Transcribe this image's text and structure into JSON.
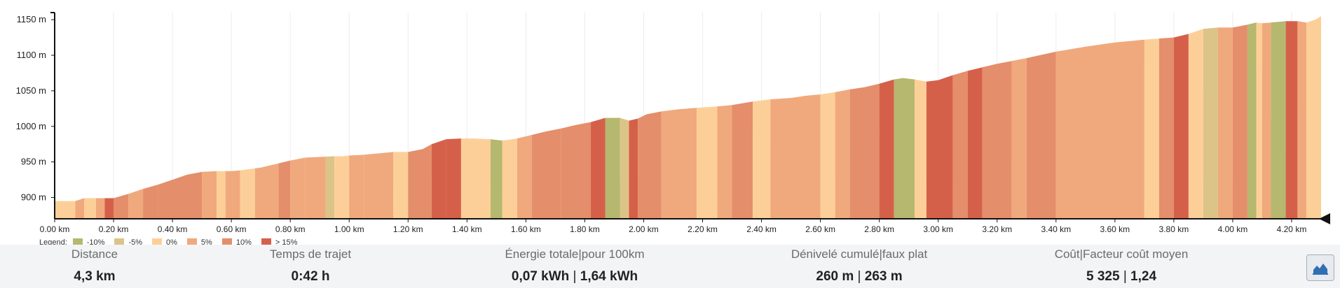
{
  "chart_data": {
    "type": "area",
    "x_unit": "km",
    "y_unit": "m",
    "xlim": [
      0,
      4.3
    ],
    "ylim": [
      870,
      1160
    ],
    "x_ticks": [
      "0.00 km",
      "0.20 km",
      "0.40 km",
      "0.60 km",
      "0.80 km",
      "1.00 km",
      "1.20 km",
      "1.40 km",
      "1.60 km",
      "1.80 km",
      "2.00 km",
      "2.20 km",
      "2.40 km",
      "2.60 km",
      "2.80 km",
      "3.00 km",
      "3.20 km",
      "3.40 km",
      "3.60 km",
      "3.80 km",
      "4.00 km",
      "4.20 km"
    ],
    "x_tick_values": [
      0,
      0.2,
      0.4,
      0.6,
      0.8,
      1.0,
      1.2,
      1.4,
      1.6,
      1.8,
      2.0,
      2.2,
      2.4,
      2.6,
      2.8,
      3.0,
      3.2,
      3.4,
      3.6,
      3.8,
      4.0,
      4.2
    ],
    "y_ticks": [
      "900 m",
      "950 m",
      "1000 m",
      "1050 m",
      "1100 m",
      "1150 m"
    ],
    "y_tick_values": [
      900,
      950,
      1000,
      1050,
      1100,
      1150
    ],
    "grid": "vertical",
    "legend": {
      "title": "Legend:",
      "items": [
        {
          "label": "-10%",
          "color": "#b5b86e"
        },
        {
          "label": "-5%",
          "color": "#dcc488"
        },
        {
          "label": "0%",
          "color": "#fdcf98"
        },
        {
          "label": "5%",
          "color": "#f0a97c"
        },
        {
          "label": "10%",
          "color": "#e48e6b"
        },
        {
          "label": "> 15%",
          "color": "#d5604a"
        }
      ]
    },
    "profile": {
      "name": "elevation",
      "x": [
        0.0,
        0.07,
        0.1,
        0.14,
        0.2,
        0.25,
        0.3,
        0.35,
        0.4,
        0.45,
        0.5,
        0.55,
        0.6,
        0.63,
        0.7,
        0.76,
        0.8,
        0.85,
        0.9,
        0.95,
        0.98,
        1.0,
        1.05,
        1.1,
        1.15,
        1.2,
        1.25,
        1.28,
        1.33,
        1.38,
        1.42,
        1.48,
        1.52,
        1.57,
        1.62,
        1.67,
        1.72,
        1.77,
        1.82,
        1.87,
        1.92,
        1.95,
        1.98,
        2.01,
        2.06,
        2.12,
        2.18,
        2.25,
        2.3,
        2.37,
        2.43,
        2.5,
        2.55,
        2.6,
        2.65,
        2.7,
        2.75,
        2.8,
        2.85,
        2.88,
        2.92,
        2.96,
        3.0,
        3.05,
        3.1,
        3.15,
        3.2,
        3.25,
        3.3,
        3.4,
        3.5,
        3.6,
        3.7,
        3.8,
        3.85,
        3.9,
        3.95,
        4.0,
        4.05,
        4.08,
        4.1,
        4.13,
        4.18,
        4.22,
        4.25,
        4.28,
        4.3
      ],
      "y": [
        895,
        895,
        899,
        899,
        899,
        905,
        912,
        918,
        925,
        932,
        936,
        937,
        937,
        938,
        942,
        948,
        952,
        956,
        957,
        958,
        958,
        959,
        960,
        962,
        964,
        964,
        968,
        975,
        982,
        983,
        983,
        982,
        980,
        983,
        988,
        993,
        997,
        1002,
        1006,
        1012,
        1012,
        1008,
        1011,
        1017,
        1021,
        1024,
        1026,
        1028,
        1030,
        1035,
        1038,
        1040,
        1043,
        1045,
        1048,
        1052,
        1055,
        1060,
        1066,
        1068,
        1066,
        1063,
        1065,
        1072,
        1078,
        1083,
        1088,
        1092,
        1096,
        1105,
        1112,
        1118,
        1122,
        1125,
        1130,
        1137,
        1139,
        1139,
        1143,
        1146,
        1145,
        1146,
        1148,
        1148,
        1146,
        1150,
        1155
      ]
    },
    "bands": [
      {
        "x0": 0.0,
        "x1": 0.07,
        "g": "0%"
      },
      {
        "x0": 0.07,
        "x1": 0.1,
        "g": "5%"
      },
      {
        "x0": 0.1,
        "x1": 0.14,
        "g": "0%"
      },
      {
        "x0": 0.14,
        "x1": 0.17,
        "g": "5%"
      },
      {
        "x0": 0.17,
        "x1": 0.2,
        "g": "> 15%"
      },
      {
        "x0": 0.2,
        "x1": 0.25,
        "g": "10%"
      },
      {
        "x0": 0.25,
        "x1": 0.3,
        "g": "5%"
      },
      {
        "x0": 0.3,
        "x1": 0.35,
        "g": "10%"
      },
      {
        "x0": 0.35,
        "x1": 0.5,
        "g": "10%"
      },
      {
        "x0": 0.5,
        "x1": 0.55,
        "g": "5%"
      },
      {
        "x0": 0.55,
        "x1": 0.58,
        "g": "0%"
      },
      {
        "x0": 0.58,
        "x1": 0.63,
        "g": "5%"
      },
      {
        "x0": 0.63,
        "x1": 0.68,
        "g": "0%"
      },
      {
        "x0": 0.68,
        "x1": 0.76,
        "g": "5%"
      },
      {
        "x0": 0.76,
        "x1": 0.8,
        "g": "10%"
      },
      {
        "x0": 0.8,
        "x1": 0.85,
        "g": "5%"
      },
      {
        "x0": 0.85,
        "x1": 0.92,
        "g": "5%"
      },
      {
        "x0": 0.92,
        "x1": 0.95,
        "g": "-5%"
      },
      {
        "x0": 0.95,
        "x1": 1.0,
        "g": "0%"
      },
      {
        "x0": 1.0,
        "x1": 1.05,
        "g": "5%"
      },
      {
        "x0": 1.05,
        "x1": 1.15,
        "g": "5%"
      },
      {
        "x0": 1.15,
        "x1": 1.2,
        "g": "0%"
      },
      {
        "x0": 1.2,
        "x1": 1.28,
        "g": "10%"
      },
      {
        "x0": 1.28,
        "x1": 1.33,
        "g": "> 15%"
      },
      {
        "x0": 1.33,
        "x1": 1.38,
        "g": "> 15%"
      },
      {
        "x0": 1.38,
        "x1": 1.48,
        "g": "0%"
      },
      {
        "x0": 1.48,
        "x1": 1.52,
        "g": "-10%"
      },
      {
        "x0": 1.52,
        "x1": 1.57,
        "g": "0%"
      },
      {
        "x0": 1.57,
        "x1": 1.62,
        "g": "5%"
      },
      {
        "x0": 1.62,
        "x1": 1.72,
        "g": "10%"
      },
      {
        "x0": 1.72,
        "x1": 1.82,
        "g": "10%"
      },
      {
        "x0": 1.82,
        "x1": 1.87,
        "g": "> 15%"
      },
      {
        "x0": 1.87,
        "x1": 1.92,
        "g": "-10%"
      },
      {
        "x0": 1.92,
        "x1": 1.95,
        "g": "-5%"
      },
      {
        "x0": 1.95,
        "x1": 1.98,
        "g": "> 15%"
      },
      {
        "x0": 1.98,
        "x1": 2.06,
        "g": "10%"
      },
      {
        "x0": 2.06,
        "x1": 2.18,
        "g": "5%"
      },
      {
        "x0": 2.18,
        "x1": 2.25,
        "g": "0%"
      },
      {
        "x0": 2.25,
        "x1": 2.3,
        "g": "5%"
      },
      {
        "x0": 2.3,
        "x1": 2.37,
        "g": "10%"
      },
      {
        "x0": 2.37,
        "x1": 2.43,
        "g": "0%"
      },
      {
        "x0": 2.43,
        "x1": 2.6,
        "g": "5%"
      },
      {
        "x0": 2.6,
        "x1": 2.65,
        "g": "0%"
      },
      {
        "x0": 2.65,
        "x1": 2.7,
        "g": "5%"
      },
      {
        "x0": 2.7,
        "x1": 2.8,
        "g": "10%"
      },
      {
        "x0": 2.8,
        "x1": 2.85,
        "g": "> 15%"
      },
      {
        "x0": 2.85,
        "x1": 2.92,
        "g": "-10%"
      },
      {
        "x0": 2.92,
        "x1": 2.96,
        "g": "0%"
      },
      {
        "x0": 2.96,
        "x1": 3.05,
        "g": "> 15%"
      },
      {
        "x0": 3.05,
        "x1": 3.1,
        "g": "10%"
      },
      {
        "x0": 3.1,
        "x1": 3.15,
        "g": "> 15%"
      },
      {
        "x0": 3.15,
        "x1": 3.25,
        "g": "10%"
      },
      {
        "x0": 3.25,
        "x1": 3.3,
        "g": "5%"
      },
      {
        "x0": 3.3,
        "x1": 3.4,
        "g": "10%"
      },
      {
        "x0": 3.4,
        "x1": 3.7,
        "g": "5%"
      },
      {
        "x0": 3.7,
        "x1": 3.75,
        "g": "0%"
      },
      {
        "x0": 3.75,
        "x1": 3.8,
        "g": "10%"
      },
      {
        "x0": 3.8,
        "x1": 3.85,
        "g": "> 15%"
      },
      {
        "x0": 3.85,
        "x1": 3.9,
        "g": "0%"
      },
      {
        "x0": 3.9,
        "x1": 3.95,
        "g": "-5%"
      },
      {
        "x0": 3.95,
        "x1": 4.0,
        "g": "5%"
      },
      {
        "x0": 4.0,
        "x1": 4.05,
        "g": "10%"
      },
      {
        "x0": 4.05,
        "x1": 4.08,
        "g": "-10%"
      },
      {
        "x0": 4.08,
        "x1": 4.1,
        "g": "0%"
      },
      {
        "x0": 4.1,
        "x1": 4.13,
        "g": "5%"
      },
      {
        "x0": 4.13,
        "x1": 4.18,
        "g": "-10%"
      },
      {
        "x0": 4.18,
        "x1": 4.22,
        "g": "> 15%"
      },
      {
        "x0": 4.22,
        "x1": 4.25,
        "g": "5%"
      },
      {
        "x0": 4.25,
        "x1": 4.3,
        "g": "0%"
      }
    ]
  },
  "stats": [
    {
      "label": "Distance",
      "value": "4,3 km"
    },
    {
      "label": "Temps de trajet",
      "value": "0:42 h"
    },
    {
      "label_a": "Énergie totale",
      "label_b": "pour 100km",
      "value_a": "0,07 kWh",
      "value_b": "1,64 kWh"
    },
    {
      "label_a": "Dénivelé cumulé",
      "label_b": "faux plat",
      "value_a": "260 m",
      "value_b": "263 m"
    },
    {
      "label_a": "Coût",
      "label_b": "Facteur coût moyen",
      "value_a": "5 325",
      "value_b": "1,24"
    }
  ],
  "separator": "|",
  "toolbar": {
    "icon": "area-chart-icon",
    "icon_color": "#2f6fb5"
  }
}
